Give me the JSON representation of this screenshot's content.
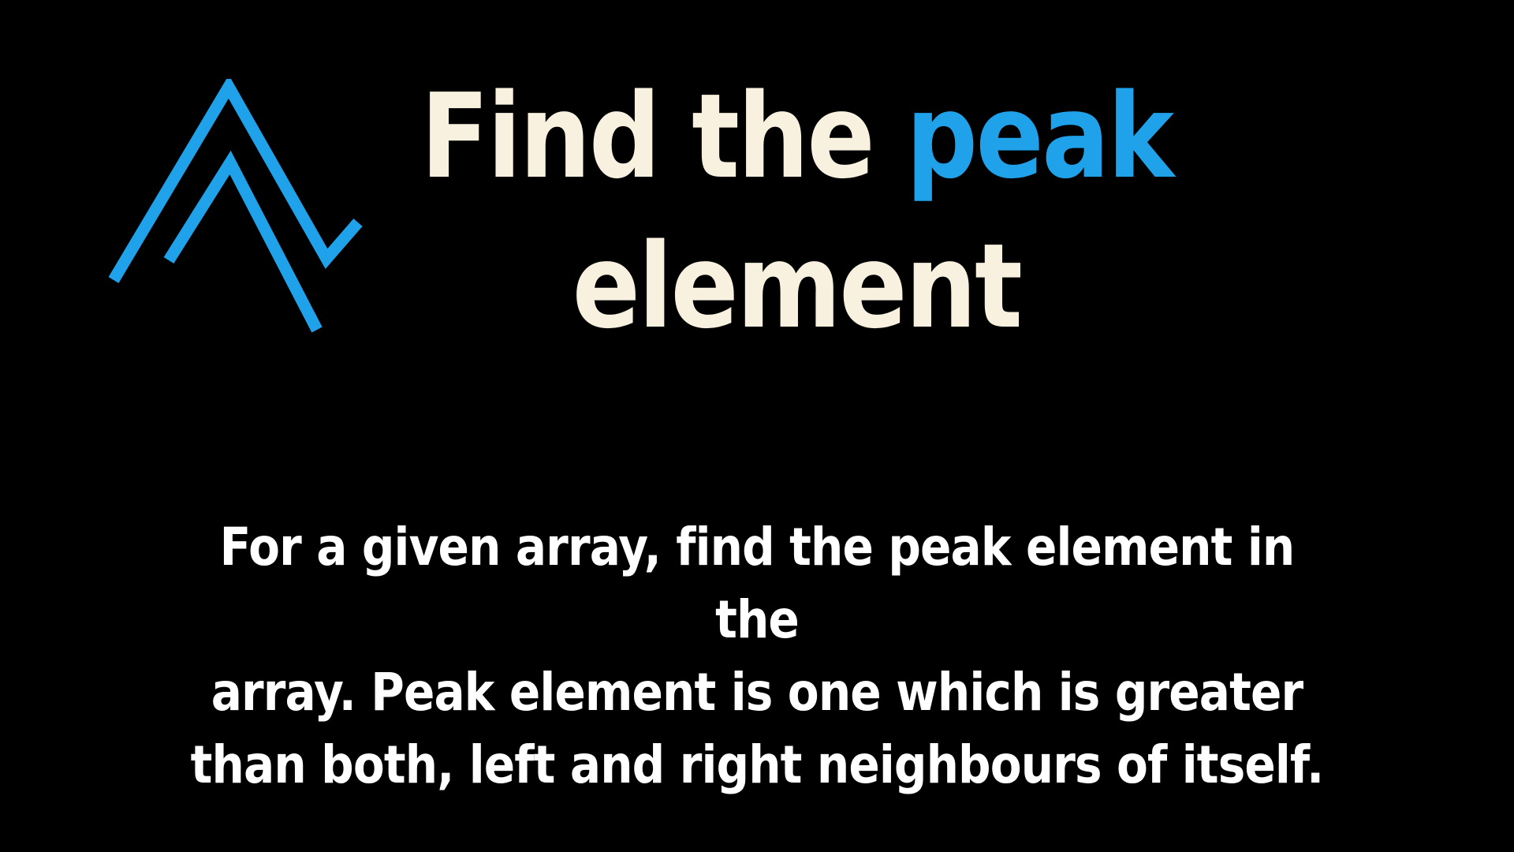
{
  "logo": {
    "icon": "double-chevron-up-icon",
    "color": "#1fa2ea"
  },
  "title": {
    "part1": "Find the ",
    "highlight": "peak",
    "part2": "element",
    "text_color": "#f8f1df",
    "highlight_color": "#1fa2ea"
  },
  "description": {
    "line1": "For a given array, find the peak element in the",
    "line2": "array. Peak element is one which is greater",
    "line3": "than both, left and right neighbours of itself."
  }
}
